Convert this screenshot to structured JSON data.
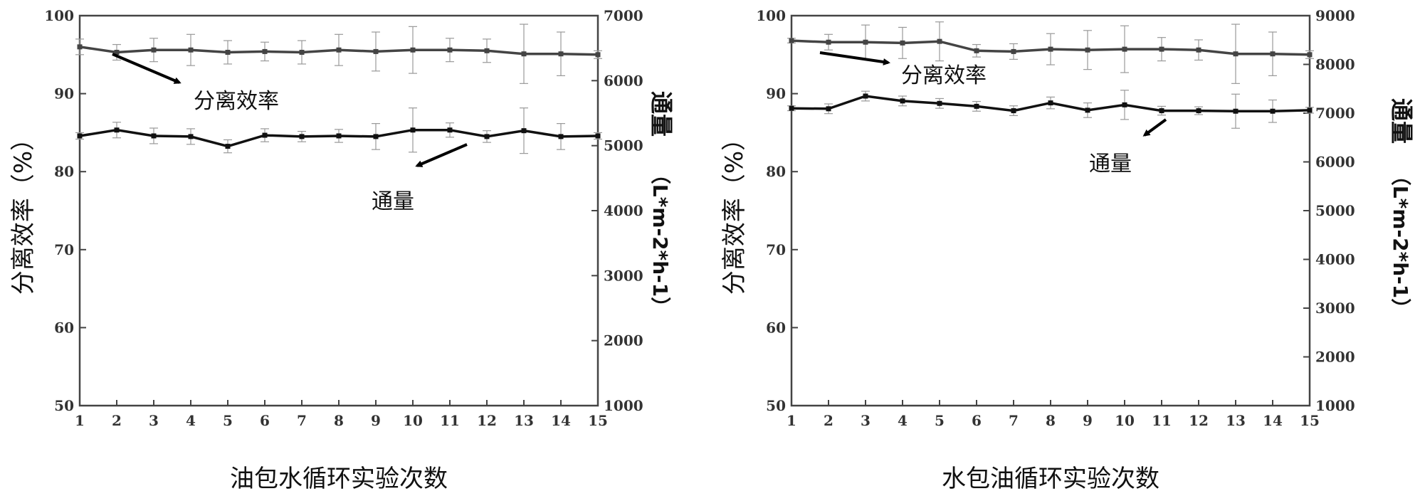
{
  "chart_data": [
    {
      "type": "line",
      "xlabel": "油包水循环实验次数",
      "ylabel_left": "分离效率（%）",
      "ylabel_right_main": "通量",
      "ylabel_right_unit": "（L*m-2*h-1）",
      "x": [
        1,
        2,
        3,
        4,
        5,
        6,
        7,
        8,
        9,
        10,
        11,
        12,
        13,
        14,
        15
      ],
      "ylim_left": [
        50,
        100
      ],
      "ylim_right": [
        1000,
        7000
      ],
      "yticks_left": [
        50,
        60,
        70,
        80,
        90,
        100
      ],
      "yticks_right": [
        1000,
        2000,
        3000,
        4000,
        5000,
        6000,
        7000
      ],
      "grid": false,
      "series": [
        {
          "name": "分离效率",
          "axis": "left",
          "color": "#444444",
          "values": [
            96.0,
            95.3,
            95.6,
            95.6,
            95.3,
            95.4,
            95.3,
            95.6,
            95.4,
            95.6,
            95.6,
            95.5,
            95.1,
            95.1,
            95.0
          ],
          "errors": [
            1.0,
            1.0,
            1.5,
            2.0,
            1.5,
            1.2,
            1.5,
            2.0,
            2.5,
            3.0,
            1.5,
            1.5,
            3.8,
            2.8,
            0.5
          ]
        },
        {
          "name": "通量",
          "axis": "right",
          "color": "#111111",
          "values": [
            5150,
            5240,
            5150,
            5140,
            4990,
            5160,
            5140,
            5150,
            5140,
            5240,
            5240,
            5140,
            5230,
            5140,
            5150
          ],
          "errors": [
            50,
            120,
            120,
            120,
            100,
            100,
            80,
            100,
            200,
            340,
            110,
            90,
            350,
            200,
            50
          ]
        }
      ],
      "annotations": [
        {
          "text": "分离效率",
          "series": "分离效率"
        },
        {
          "text": "通量",
          "series": "通量"
        }
      ]
    },
    {
      "type": "line",
      "xlabel": "水包油循环实验次数",
      "ylabel_left": "分离效率（%）",
      "ylabel_right_main": "通量",
      "ylabel_right_unit": "（L*m-2*h-1）",
      "x": [
        1,
        2,
        3,
        4,
        5,
        6,
        7,
        8,
        9,
        10,
        11,
        12,
        13,
        14,
        15
      ],
      "ylim_left": [
        50,
        100
      ],
      "ylim_right": [
        1000,
        9000
      ],
      "yticks_left": [
        50,
        60,
        70,
        80,
        90,
        100
      ],
      "yticks_right": [
        1000,
        2000,
        3000,
        4000,
        5000,
        6000,
        7000,
        8000,
        9000
      ],
      "grid": false,
      "series": [
        {
          "name": "分离效率",
          "axis": "left",
          "color": "#444444",
          "values": [
            96.8,
            96.6,
            96.6,
            96.5,
            96.7,
            95.5,
            95.4,
            95.7,
            95.6,
            95.7,
            95.7,
            95.6,
            95.1,
            95.1,
            95.0
          ],
          "errors": [
            0.3,
            1.0,
            2.2,
            2.0,
            2.5,
            0.8,
            1.0,
            2.0,
            2.5,
            3.0,
            1.5,
            1.3,
            3.8,
            2.8,
            0.5
          ]
        },
        {
          "name": "通量",
          "axis": "right",
          "color": "#111111",
          "values": [
            7100,
            7090,
            7350,
            7250,
            7200,
            7140,
            7050,
            7210,
            7060,
            7170,
            7050,
            7050,
            7040,
            7040,
            7060
          ],
          "errors": [
            50,
            100,
            100,
            100,
            100,
            100,
            100,
            120,
            150,
            300,
            90,
            80,
            350,
            230,
            60
          ]
        }
      ],
      "annotations": [
        {
          "text": "分离效率",
          "series": "分离效率"
        },
        {
          "text": "通量",
          "series": "通量"
        }
      ]
    }
  ]
}
